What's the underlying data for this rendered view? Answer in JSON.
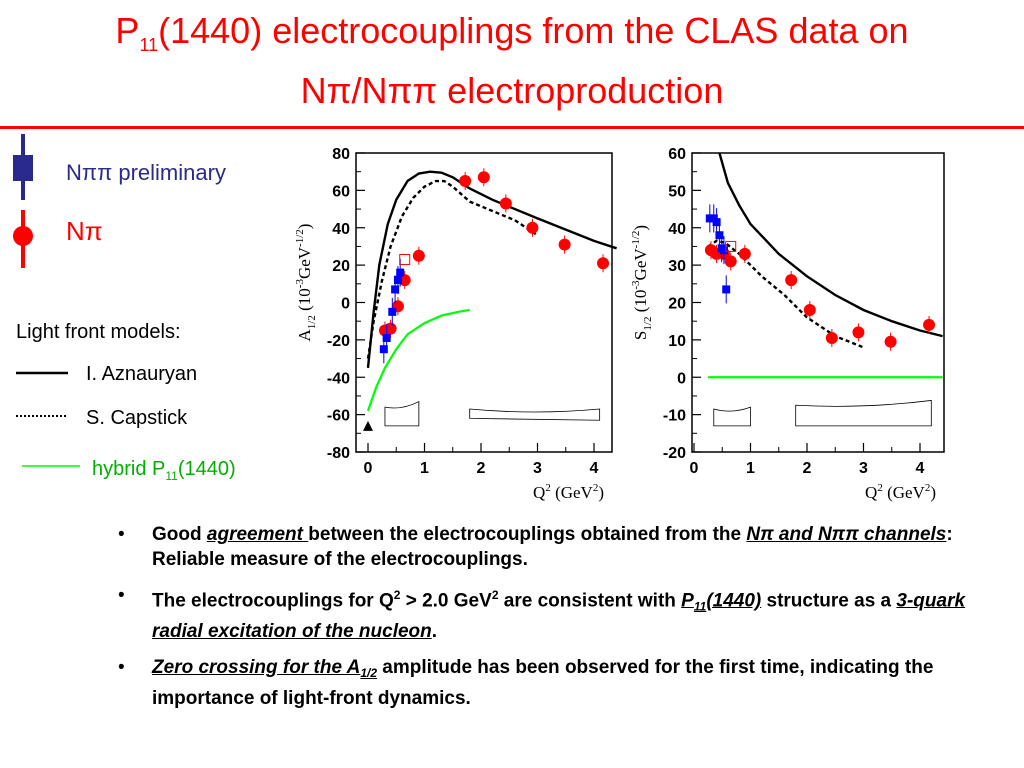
{
  "header": {
    "title_main": "P",
    "title_sub": "11",
    "title_rest": "(1440) electrocouplings from the CLAS data on",
    "title_line2": "Nπ/Nππ electroproduction"
  },
  "legend": {
    "npipi_label": "Nππ preliminary",
    "npi_label": "Nπ",
    "models_heading": "Light front models:",
    "model_solid": "I. Aznauryan",
    "model_dashed": "S. Capstick",
    "model_hybrid_main": "hybrid P",
    "model_hybrid_sub": "11",
    "model_hybrid_rest": "(1440)"
  },
  "colors": {
    "title": "#ff0000",
    "npi": "#ff0000",
    "npipi": "#0000ff",
    "npipi_legend": "#2a2a8c",
    "hybrid": "#00ff00"
  },
  "chart_data": [
    {
      "type": "scatter",
      "ylabel": "A1/2 (10-3GeV-1/2)",
      "xlabel": "Q2 (GeV2)",
      "xlim": [
        0,
        4.5
      ],
      "ylim": [
        -80,
        80
      ],
      "x_ticks": [
        "0",
        "1",
        "2",
        "3",
        "4"
      ],
      "y_ticks": [
        "80",
        "60",
        "40",
        "20",
        "0",
        "-20",
        "-40",
        "-60",
        "-80"
      ],
      "series": [
        {
          "name": "Nπ",
          "marker": "circle",
          "color": "#ff0000",
          "points": [
            [
              0.3,
              -15
            ],
            [
              0.4,
              -14
            ],
            [
              0.53,
              -2
            ],
            [
              0.65,
              12
            ],
            [
              0.9,
              25
            ],
            [
              1.72,
              65
            ],
            [
              2.05,
              67
            ],
            [
              2.44,
              53
            ],
            [
              2.91,
              40
            ],
            [
              3.48,
              31
            ],
            [
              4.16,
              21
            ]
          ]
        },
        {
          "name": "Nππ preliminary",
          "marker": "square",
          "color": "#0000ff",
          "points": [
            [
              0.28,
              -25
            ],
            [
              0.33,
              -19
            ],
            [
              0.43,
              -5
            ],
            [
              0.48,
              7
            ],
            [
              0.53,
              12
            ],
            [
              0.57,
              16
            ]
          ]
        },
        {
          "name": "Nππ (open)",
          "marker": "open-square",
          "color": "#ff0000",
          "points": [
            [
              0.65,
              23
            ]
          ]
        },
        {
          "name": "photopoint",
          "marker": "triangle",
          "color": "#000000",
          "points": [
            [
              0.0,
              -66
            ]
          ]
        }
      ],
      "curves": [
        {
          "name": "I. Aznauryan",
          "style": "solid",
          "color": "#000000",
          "points": [
            [
              0.0,
              -35
            ],
            [
              0.1,
              -5
            ],
            [
              0.2,
              20
            ],
            [
              0.35,
              42
            ],
            [
              0.5,
              55
            ],
            [
              0.7,
              65
            ],
            [
              0.9,
              69
            ],
            [
              1.1,
              70
            ],
            [
              1.3,
              69.5
            ],
            [
              1.5,
              67
            ],
            [
              1.8,
              61
            ],
            [
              2.2,
              55
            ],
            [
              2.6,
              50
            ],
            [
              3.0,
              45
            ],
            [
              3.5,
              39
            ],
            [
              4.0,
              33
            ],
            [
              4.4,
              29
            ]
          ]
        },
        {
          "name": "S. Capstick",
          "style": "dashed",
          "color": "#000000",
          "points": [
            [
              0.0,
              -30
            ],
            [
              0.1,
              -10
            ],
            [
              0.25,
              12
            ],
            [
              0.4,
              30
            ],
            [
              0.6,
              46
            ],
            [
              0.8,
              56
            ],
            [
              1.0,
              62
            ],
            [
              1.2,
              65
            ],
            [
              1.35,
              65
            ],
            [
              1.5,
              62
            ],
            [
              1.8,
              54
            ],
            [
              2.2,
              49
            ],
            [
              2.6,
              44
            ],
            [
              3.0,
              36
            ]
          ]
        },
        {
          "name": "hybrid P11(1440)",
          "style": "solid",
          "color": "#00ff00",
          "points": [
            [
              0.0,
              -58
            ],
            [
              0.15,
              -45
            ],
            [
              0.3,
              -35
            ],
            [
              0.5,
              -25
            ],
            [
              0.7,
              -17
            ],
            [
              1.0,
              -11
            ],
            [
              1.3,
              -7
            ],
            [
              1.6,
              -5
            ],
            [
              1.8,
              -4
            ]
          ]
        }
      ],
      "error_bands": [
        {
          "x_range": [
            0.3,
            0.9
          ],
          "top": [
            -56,
            -53
          ],
          "bottom": [
            -66,
            -66
          ]
        },
        {
          "x_range": [
            1.8,
            4.1
          ],
          "top": [
            -57,
            -57
          ],
          "bottom": [
            -62,
            -63
          ]
        }
      ]
    },
    {
      "type": "scatter",
      "ylabel": "S1/2 (10-3GeV-1/2)",
      "xlabel": "Q2 (GeV2)",
      "xlim": [
        0,
        4.5
      ],
      "ylim": [
        -20,
        60
      ],
      "x_ticks": [
        "0",
        "1",
        "2",
        "3",
        "4"
      ],
      "y_ticks": [
        "60",
        "50",
        "40",
        "30",
        "20",
        "10",
        "0",
        "-10",
        "-20"
      ],
      "series": [
        {
          "name": "Nπ",
          "marker": "circle",
          "color": "#ff0000",
          "points": [
            [
              0.3,
              34
            ],
            [
              0.4,
              33
            ],
            [
              0.53,
              33
            ],
            [
              0.65,
              31
            ],
            [
              0.9,
              33
            ],
            [
              1.72,
              26
            ],
            [
              2.05,
              18
            ],
            [
              2.44,
              10.5
            ],
            [
              2.91,
              12
            ],
            [
              3.48,
              9.5
            ],
            [
              4.16,
              14
            ]
          ]
        },
        {
          "name": "Nππ preliminary",
          "marker": "square",
          "color": "#0000ff",
          "points": [
            [
              0.28,
              42.5
            ],
            [
              0.35,
              42.5
            ],
            [
              0.4,
              41.5
            ],
            [
              0.45,
              38
            ],
            [
              0.49,
              34.5
            ],
            [
              0.53,
              34
            ],
            [
              0.57,
              23.5
            ]
          ]
        },
        {
          "name": "Nππ (open)",
          "marker": "open-square",
          "color": "#ff0000",
          "points": [
            [
              0.65,
              35
            ]
          ]
        }
      ],
      "curves": [
        {
          "name": "I. Aznauryan",
          "style": "solid",
          "color": "#000000",
          "points": [
            [
              0.45,
              60
            ],
            [
              0.6,
              52
            ],
            [
              0.8,
              46
            ],
            [
              1.0,
              41
            ],
            [
              1.5,
              33
            ],
            [
              2.0,
              27
            ],
            [
              2.5,
              22
            ],
            [
              3.0,
              18
            ],
            [
              3.5,
              15
            ],
            [
              4.0,
              12.5
            ],
            [
              4.4,
              11
            ]
          ]
        },
        {
          "name": "S. Capstick",
          "style": "dashed",
          "color": "#000000",
          "points": [
            [
              0.25,
              35
            ],
            [
              0.4,
              36.5
            ],
            [
              0.55,
              36
            ],
            [
              0.8,
              33
            ],
            [
              1.2,
              27
            ],
            [
              1.6,
              22
            ],
            [
              2.0,
              16
            ],
            [
              2.5,
              11
            ],
            [
              3.0,
              8
            ]
          ]
        },
        {
          "name": "hybrid P11(1440)",
          "style": "solid",
          "color": "#00ff00",
          "points": [
            [
              0.25,
              0
            ],
            [
              4.4,
              0
            ]
          ]
        }
      ],
      "error_bands": [
        {
          "x_range": [
            0.35,
            1.0
          ],
          "top": [
            -8.5,
            -8.0
          ],
          "bottom": [
            -13,
            -13
          ]
        },
        {
          "x_range": [
            1.8,
            4.2
          ],
          "top": [
            -7.5,
            -6.2
          ],
          "bottom": [
            -13,
            -13
          ]
        }
      ]
    }
  ],
  "bullets": [
    {
      "b1_a": "Good ",
      "b1_emph": "agreement ",
      "b1_b": "between the electrocouplings obtained from the ",
      "b1_emph2": "Nπ and Nππ channels",
      "b1_c": ":  Reliable measure of the electrocouplings."
    },
    {
      "b2_a": "The electrocouplings for Q",
      "b2_sup1": "2",
      "b2_b": " > 2.0 GeV",
      "b2_sup2": "2",
      "b2_c": "  are consistent with ",
      "b2_emph": "P",
      "b2_emph_sub": "11",
      "b2_emph_rest": "(1440)",
      "b2_d": " structure as a ",
      "b2_emph2": "3-quark radial excitation of the nucleon",
      "b2_e": "."
    },
    {
      "b3_emph": "Zero crossing for the A",
      "b3_emph_sub": "1/2",
      "b3_a": " amplitude has been observed for the first time, indicating the importance of light-front dynamics."
    }
  ]
}
